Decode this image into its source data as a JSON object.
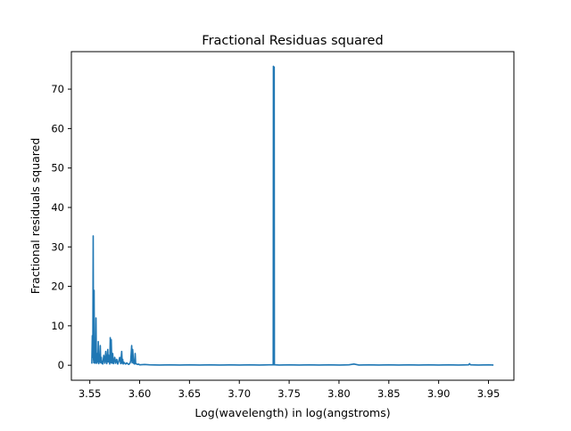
{
  "chart_data": {
    "type": "line",
    "title": "Fractional Residuas squared",
    "xlabel": "Log(wavelength) in log(angstroms)",
    "ylabel": "Fractional residuals squared",
    "xlim": [
      3.5315,
      3.9755
    ],
    "ylim": [
      -3.8,
      79.5
    ],
    "xticks": [
      3.55,
      3.6,
      3.65,
      3.7,
      3.75,
      3.8,
      3.85,
      3.9,
      3.95
    ],
    "xtick_labels": [
      "3.55",
      "3.60",
      "3.65",
      "3.70",
      "3.75",
      "3.80",
      "3.85",
      "3.90",
      "3.95"
    ],
    "yticks": [
      0,
      10,
      20,
      30,
      40,
      50,
      60,
      70
    ],
    "ytick_labels": [
      "0",
      "10",
      "20",
      "30",
      "40",
      "50",
      "60",
      "70"
    ],
    "grid": false,
    "legend": false,
    "line_color": "#1f77b4",
    "series": [
      {
        "x": [
          3.552,
          3.5525,
          3.553,
          3.5534,
          3.5537,
          3.554,
          3.5543,
          3.5546,
          3.555,
          3.5554,
          3.5558,
          3.5562,
          3.5566,
          3.557,
          3.5575,
          3.558,
          3.5585,
          3.559,
          3.5595,
          3.56,
          3.5605,
          3.561,
          3.5615,
          3.562,
          3.5625,
          3.563,
          3.564,
          3.565,
          3.566,
          3.5665,
          3.567,
          3.5675,
          3.568,
          3.5685,
          3.569,
          3.57,
          3.5705,
          3.571,
          3.5715,
          3.572,
          3.5725,
          3.573,
          3.5735,
          3.574,
          3.575,
          3.576,
          3.577,
          3.578,
          3.579,
          3.58,
          3.581,
          3.582,
          3.5825,
          3.583,
          3.5835,
          3.584,
          3.585,
          3.586,
          3.587,
          3.588,
          3.589,
          3.59,
          3.591,
          3.592,
          3.5925,
          3.593,
          3.594,
          3.595,
          3.5955,
          3.596,
          3.597,
          3.598,
          3.599,
          3.6,
          3.605,
          3.61,
          3.62,
          3.63,
          3.64,
          3.65,
          3.66,
          3.67,
          3.68,
          3.69,
          3.7,
          3.71,
          3.72,
          3.73,
          3.734,
          3.7342,
          3.7344,
          3.7346,
          3.7348,
          3.735,
          3.7352,
          3.736,
          3.74,
          3.75,
          3.76,
          3.77,
          3.78,
          3.79,
          3.8,
          3.81,
          3.815,
          3.82,
          3.83,
          3.84,
          3.85,
          3.86,
          3.87,
          3.88,
          3.89,
          3.9,
          3.91,
          3.92,
          3.93,
          3.931,
          3.932,
          3.94,
          3.95,
          3.955
        ],
        "y": [
          0.4,
          7.5,
          2.0,
          32.8,
          1.5,
          0.6,
          19.0,
          1.2,
          4.5,
          0.5,
          2.0,
          12.0,
          1.0,
          0.5,
          3.0,
          0.8,
          6.0,
          0.4,
          1.5,
          0.8,
          5.0,
          0.6,
          2.0,
          0.5,
          1.0,
          0.3,
          2.5,
          0.5,
          3.5,
          1.0,
          0.4,
          2.0,
          4.0,
          0.8,
          2.5,
          0.3,
          7.0,
          0.6,
          6.5,
          1.5,
          0.5,
          3.0,
          0.8,
          0.4,
          2.0,
          0.5,
          1.5,
          0.3,
          1.0,
          2.0,
          0.4,
          3.5,
          0.5,
          1.5,
          0.3,
          0.8,
          0.5,
          0.3,
          0.6,
          0.4,
          0.2,
          0.4,
          1.0,
          5.0,
          0.6,
          4.0,
          0.5,
          0.3,
          3.0,
          0.5,
          0.3,
          0.2,
          0.3,
          0.1,
          0.2,
          0.1,
          0.05,
          0.1,
          0.05,
          0.1,
          0.05,
          0.1,
          0.05,
          0.1,
          0.05,
          0.1,
          0.05,
          0.1,
          0.1,
          75.8,
          0.1,
          75.5,
          0.1,
          75.6,
          0.1,
          0.1,
          0.05,
          0.1,
          0.05,
          0.1,
          0.05,
          0.1,
          0.05,
          0.1,
          0.3,
          0.05,
          0.1,
          0.05,
          0.1,
          0.05,
          0.1,
          0.05,
          0.1,
          0.05,
          0.1,
          0.05,
          0.1,
          0.4,
          0.1,
          0.05,
          0.1,
          0.05
        ]
      }
    ]
  }
}
